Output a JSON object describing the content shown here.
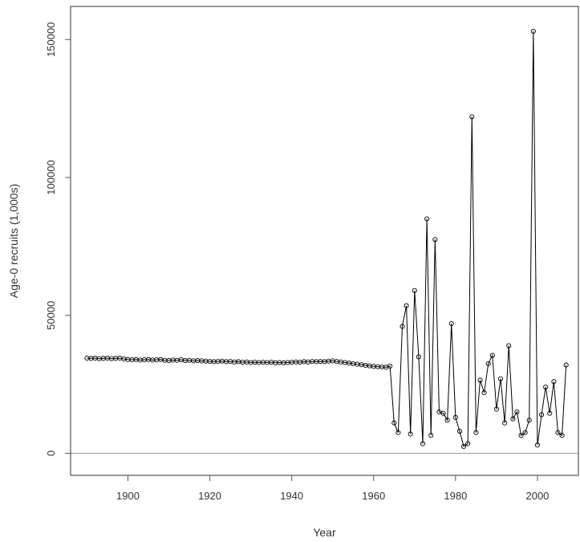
{
  "chart_data": {
    "type": "line",
    "xlabel": "Year",
    "ylabel": "Age-0 recruits (1,000s)",
    "xlim": [
      1886,
      2010
    ],
    "ylim": [
      -8000,
      162000
    ],
    "x_ticks": [
      1900,
      1920,
      1940,
      1960,
      1980,
      2000
    ],
    "x_tick_labels": [
      "1900",
      "1920",
      "1940",
      "1960",
      "1980",
      "2000"
    ],
    "y_ticks": [
      0,
      50000,
      100000,
      150000
    ],
    "y_tick_labels": [
      "0",
      "50000",
      "100000",
      "150000"
    ],
    "reference_line_y": 0,
    "grid": false,
    "legend": "none",
    "series": [
      {
        "marker": "open-circle",
        "color": "#000000",
        "x": [
          1890,
          1891,
          1892,
          1893,
          1894,
          1895,
          1896,
          1897,
          1898,
          1899,
          1900,
          1901,
          1902,
          1903,
          1904,
          1905,
          1906,
          1907,
          1908,
          1909,
          1910,
          1911,
          1912,
          1913,
          1914,
          1915,
          1916,
          1917,
          1918,
          1919,
          1920,
          1921,
          1922,
          1923,
          1924,
          1925,
          1926,
          1927,
          1928,
          1929,
          1930,
          1931,
          1932,
          1933,
          1934,
          1935,
          1936,
          1937,
          1938,
          1939,
          1940,
          1941,
          1942,
          1943,
          1944,
          1945,
          1946,
          1947,
          1948,
          1949,
          1950,
          1951,
          1952,
          1953,
          1954,
          1955,
          1956,
          1957,
          1958,
          1959,
          1960,
          1961,
          1962,
          1963,
          1964,
          1965,
          1966,
          1967,
          1968,
          1969,
          1970,
          1971,
          1972,
          1973,
          1974,
          1975,
          1976,
          1977,
          1978,
          1979,
          1980,
          1981,
          1982,
          1983,
          1984,
          1985,
          1986,
          1987,
          1988,
          1989,
          1990,
          1991,
          1992,
          1993,
          1994,
          1995,
          1996,
          1997,
          1998,
          1999,
          2000,
          2001,
          2002,
          2003,
          2004,
          2005,
          2006,
          2007
        ],
        "y": [
          34500,
          34400,
          34500,
          34300,
          34400,
          34500,
          34300,
          34400,
          34500,
          34200,
          34000,
          33900,
          34000,
          33800,
          33900,
          34000,
          33800,
          33900,
          34000,
          33700,
          33600,
          33800,
          33700,
          33900,
          33600,
          33700,
          33500,
          33600,
          33500,
          33400,
          33300,
          33200,
          33300,
          33400,
          33200,
          33300,
          33100,
          33200,
          33000,
          33100,
          32900,
          33000,
          32900,
          33000,
          32900,
          33000,
          32800,
          32900,
          32800,
          32900,
          33000,
          33100,
          33000,
          33200,
          33100,
          33300,
          33200,
          33300,
          33200,
          33400,
          33500,
          33300,
          33100,
          32900,
          32700,
          32500,
          32300,
          32100,
          31900,
          31700,
          31500,
          31400,
          31300,
          31200,
          31600,
          11000,
          7500,
          46000,
          53500,
          7000,
          59000,
          35000,
          3500,
          85000,
          6500,
          77500,
          15000,
          14500,
          12000,
          47000,
          13000,
          8000,
          2500,
          3500,
          122000,
          7500,
          26500,
          22000,
          32500,
          35500,
          16000,
          27000,
          11000,
          39000,
          12500,
          15000,
          6500,
          7500,
          12000,
          153000,
          3000,
          14000,
          24000,
          14500,
          26000,
          7500,
          6500,
          32000
        ]
      }
    ]
  }
}
